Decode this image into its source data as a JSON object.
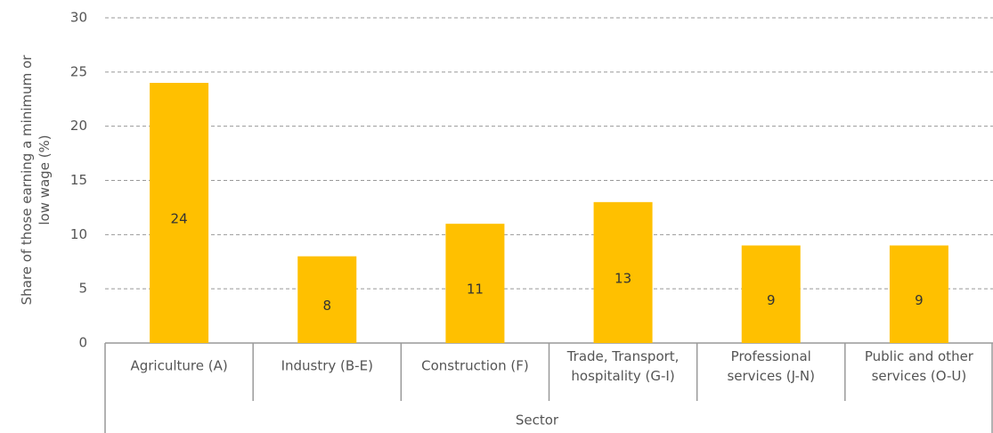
{
  "chart_data": {
    "type": "bar",
    "categories": [
      "Agriculture (A)",
      "Industry (B-E)",
      "Construction (F)",
      "Trade, Transport, hospitality (G-I)",
      "Professional services (J-N)",
      "Public and other services (O-U)"
    ],
    "values": [
      24,
      8,
      11,
      13,
      9,
      9
    ],
    "color": "#ffc000",
    "x_label": "Sector",
    "y_label": "Share of those earning a minimum or low wage (%)",
    "ylim": [
      0,
      30
    ],
    "yticks": [
      0,
      5,
      10,
      15,
      20,
      25,
      30
    ],
    "grid": true
  }
}
